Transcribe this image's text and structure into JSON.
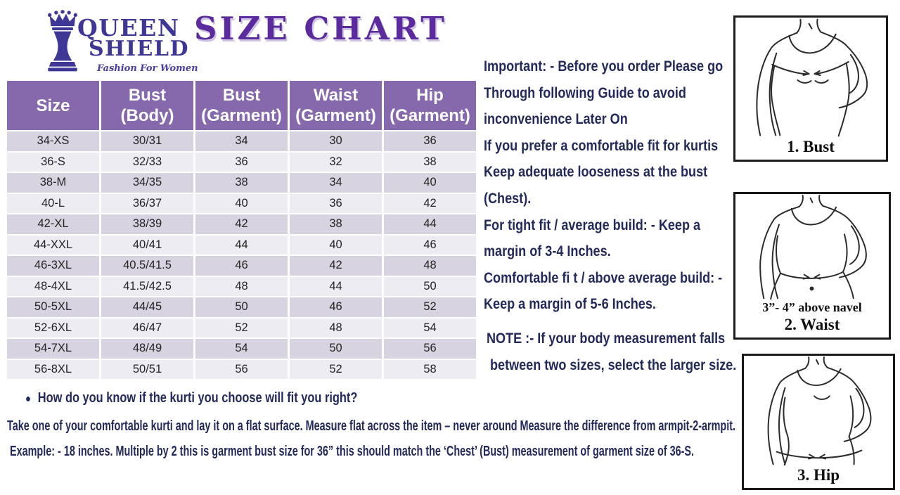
{
  "brand": {
    "line1": "QUEEN",
    "line2": "SHIELD",
    "tagline": "Fashion For Women"
  },
  "title": "SIZE CHART",
  "table": {
    "headers": [
      {
        "l1": "Size",
        "l2": ""
      },
      {
        "l1": "Bust",
        "l2": "(Body)"
      },
      {
        "l1": "Bust",
        "l2": "(Garment)"
      },
      {
        "l1": "Waist",
        "l2": "(Garment)"
      },
      {
        "l1": "Hip",
        "l2": "(Garment)"
      }
    ],
    "rows": [
      [
        "34-XS",
        "30/31",
        "34",
        "30",
        "36"
      ],
      [
        "36-S",
        "32/33",
        "36",
        "32",
        "38"
      ],
      [
        "38-M",
        "34/35",
        "38",
        "34",
        "40"
      ],
      [
        "40-L",
        "36/37",
        "40",
        "36",
        "42"
      ],
      [
        "42-XL",
        "38/39",
        "42",
        "38",
        "44"
      ],
      [
        "44-XXL",
        "40/41",
        "44",
        "40",
        "46"
      ],
      [
        "46-3XL",
        "40.5/41.5",
        "46",
        "42",
        "48"
      ],
      [
        "48-4XL",
        "41.5/42.5",
        "48",
        "44",
        "50"
      ],
      [
        "50-5XL",
        "44/45",
        "50",
        "46",
        "52"
      ],
      [
        "52-6XL",
        "46/47",
        "52",
        "48",
        "54"
      ],
      [
        "54-7XL",
        "48/49",
        "54",
        "50",
        "56"
      ],
      [
        "56-8XL",
        "50/51",
        "56",
        "52",
        "58"
      ]
    ]
  },
  "instructions": {
    "lines": [
      "Important: - Before you order Please go",
      "Through following Guide to avoid",
      "inconvenience Later On",
      "If you prefer a comfortable fit for kurtis",
      "Keep adequate looseness at the bust",
      "(Chest).",
      "For tight fit / average build: - Keep a",
      "margin of 3-4 Inches.",
      "Comfortable fi t / above average build: -",
      "Keep a margin of 5-6 Inches."
    ],
    "note_lines": [
      "NOTE :- If your body measurement falls",
      "between two sizes, select the larger size."
    ]
  },
  "footer": {
    "bullet": "●",
    "question": "How do you know if the kurti you choose will fit you right?",
    "line2": "Take one of your comfortable kurti and lay it on a flat surface. Measure flat across the item – never around Measure the difference from armpit-2-armpit.",
    "line3": "Example: - 18 inches. Multiple by 2 this is garment bust size for 36” this should match the ‘Chest’ (Bust) measurement of garment size of 36-S."
  },
  "figures": [
    {
      "label": "1. Bust"
    },
    {
      "caption": "3”- 4” above navel",
      "label": "2. Waist"
    },
    {
      "label": "3. Hip"
    }
  ],
  "colors": {
    "header_purple": "#8668AD",
    "row_dark": "#D8D3E0",
    "row_light": "#EDECF3",
    "brand_purple": "#3E3796",
    "title_purple": "#5B2B9E",
    "text_navy": "#232A5A"
  }
}
